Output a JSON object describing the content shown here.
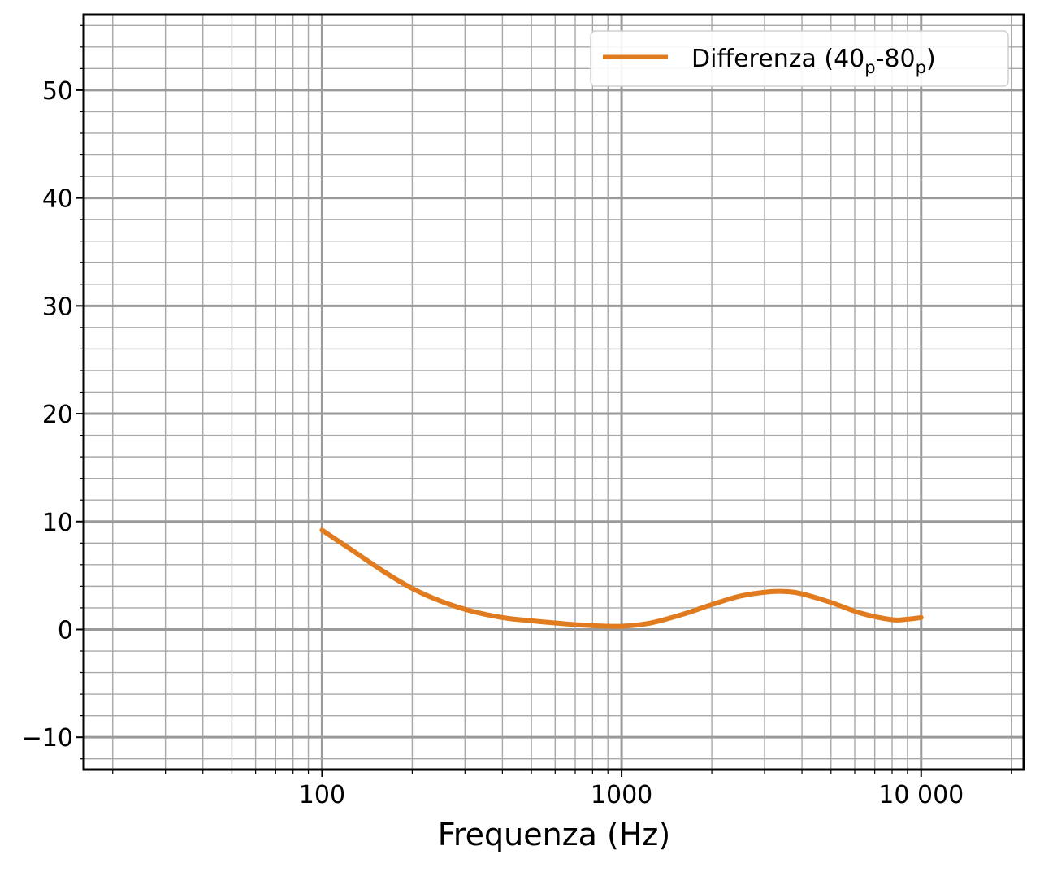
{
  "chart_data": {
    "type": "line",
    "title": "",
    "xlabel": "Frequenza (Hz)",
    "ylabel": "",
    "x_scale": "log",
    "xlim": [
      16,
      22000
    ],
    "ylim": [
      -13,
      57
    ],
    "grid": true,
    "legend_position": "top-right",
    "x_ticks": [
      {
        "value": 100,
        "label": "100"
      },
      {
        "value": 1000,
        "label": "1000"
      },
      {
        "value": 10000,
        "label": "10 000"
      }
    ],
    "y_ticks": [
      {
        "value": -10,
        "label": "−10"
      },
      {
        "value": 0,
        "label": "0"
      },
      {
        "value": 10,
        "label": "10"
      },
      {
        "value": 20,
        "label": "20"
      },
      {
        "value": 30,
        "label": "30"
      },
      {
        "value": 40,
        "label": "40"
      },
      {
        "value": 50,
        "label": "50"
      }
    ],
    "series": [
      {
        "name": "Differenza (40p-80p)",
        "legend_main": "Differenza (40",
        "legend_sub1": "p",
        "legend_mid": "-80",
        "legend_sub2": "p",
        "legend_close": ")",
        "color": "#e07b1f",
        "x": [
          100,
          125,
          160,
          200,
          250,
          315,
          400,
          500,
          630,
          800,
          1000,
          1250,
          1600,
          2000,
          2500,
          3150,
          3600,
          4000,
          5000,
          6300,
          8000,
          9000,
          10000
        ],
        "y": [
          9.2,
          7.4,
          5.4,
          3.8,
          2.6,
          1.7,
          1.1,
          0.8,
          0.55,
          0.35,
          0.3,
          0.6,
          1.4,
          2.3,
          3.1,
          3.5,
          3.5,
          3.3,
          2.5,
          1.5,
          0.9,
          0.95,
          1.1
        ]
      }
    ]
  }
}
